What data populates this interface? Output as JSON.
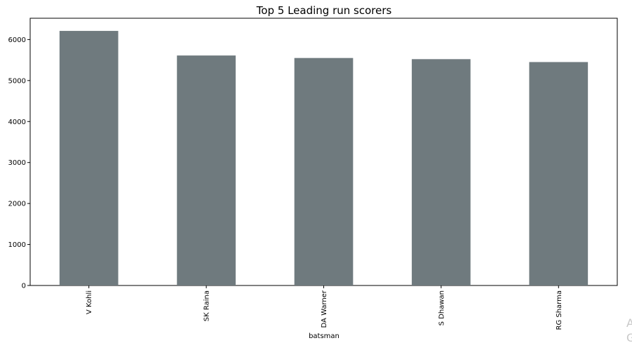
{
  "chart_data": {
    "type": "bar",
    "title": "Top 5 Leading run scorers",
    "xlabel": "batsman",
    "ylabel": "",
    "categories": [
      "V Kohli",
      "SK Raina",
      "DA Warner",
      "S Dhawan",
      "RG Sharma"
    ],
    "values": [
      6211,
      5611,
      5550,
      5522,
      5451
    ],
    "ylim": [
      0,
      6520
    ],
    "yticks": [
      0,
      1000,
      2000,
      3000,
      4000,
      5000,
      6000
    ],
    "bar_color": "#6f7a7e",
    "grid": false,
    "legend": "none"
  },
  "overlay": {
    "watermark_line1": "A",
    "watermark_line2": "G"
  }
}
